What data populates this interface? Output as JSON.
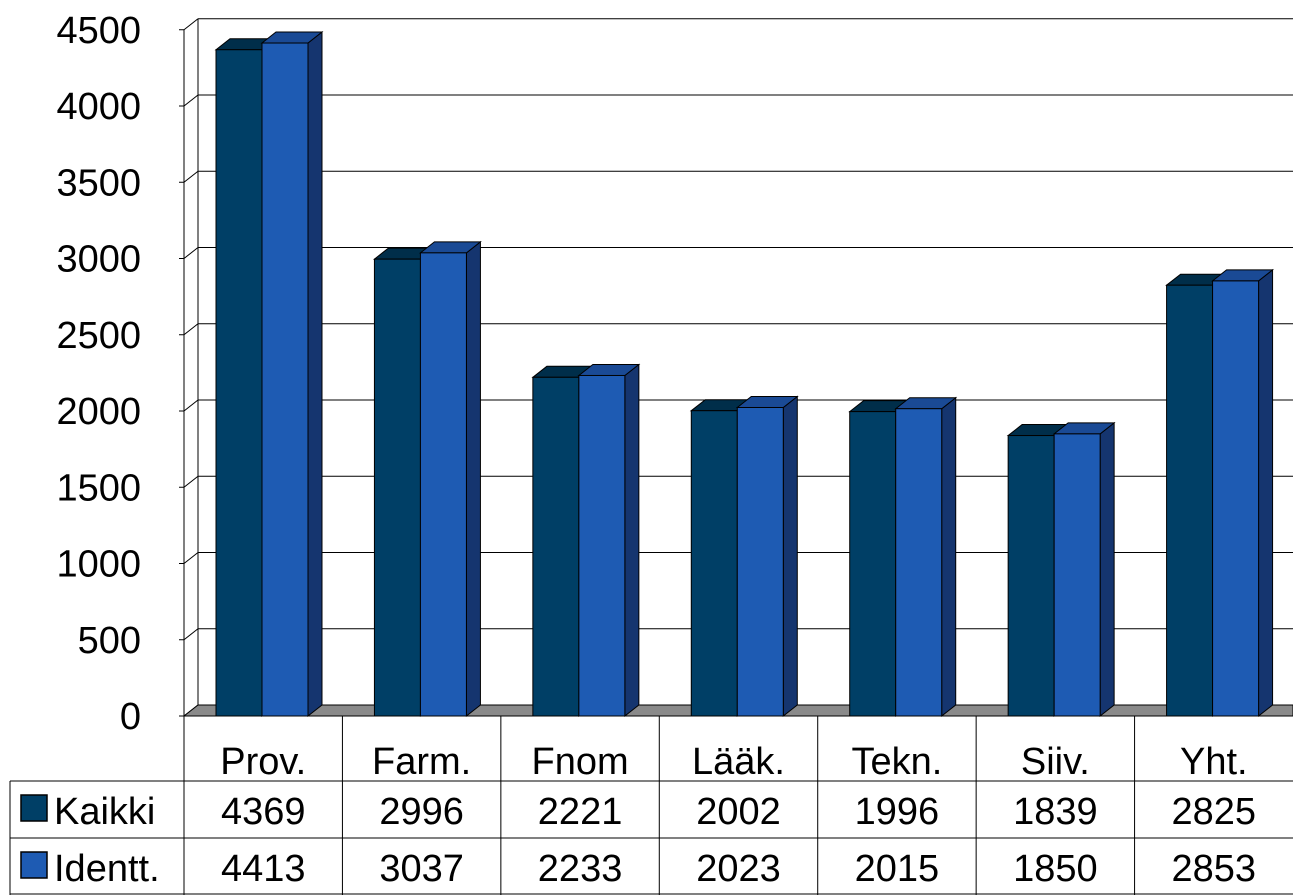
{
  "chart_data": {
    "type": "bar",
    "title": "",
    "xlabel": "",
    "ylabel": "",
    "ylim": [
      0,
      4500
    ],
    "yticks": [
      0,
      500,
      1000,
      1500,
      2000,
      2500,
      3000,
      3500,
      4000,
      4500
    ],
    "grid": true,
    "legend_placement": "data table rows (left)",
    "categories": [
      "Prov.",
      "Farm.",
      "Fnom",
      "Lääk.",
      "Tekn.",
      "Siiv.",
      "Yht."
    ],
    "series": [
      {
        "name": "Kaikki",
        "values": [
          4369,
          2996,
          2221,
          2002,
          1996,
          1839,
          2825
        ],
        "color": "#003f66",
        "side_color": "#002a44",
        "top_color": "#002e4a"
      },
      {
        "name": "Identt.",
        "values": [
          4413,
          3037,
          2233,
          2023,
          2015,
          1850,
          2853
        ],
        "color": "#1e5bb3",
        "side_color": "#15356f",
        "top_color": "#1a4a95"
      }
    ],
    "table_values": [
      [
        "4369",
        "2996",
        "2221",
        "2002",
        "1996",
        "1839",
        "2825"
      ],
      [
        "4413",
        "3037",
        "2233",
        "2023",
        "2015",
        "1850",
        "2853"
      ]
    ],
    "floor_color": "#8a8a8a"
  }
}
